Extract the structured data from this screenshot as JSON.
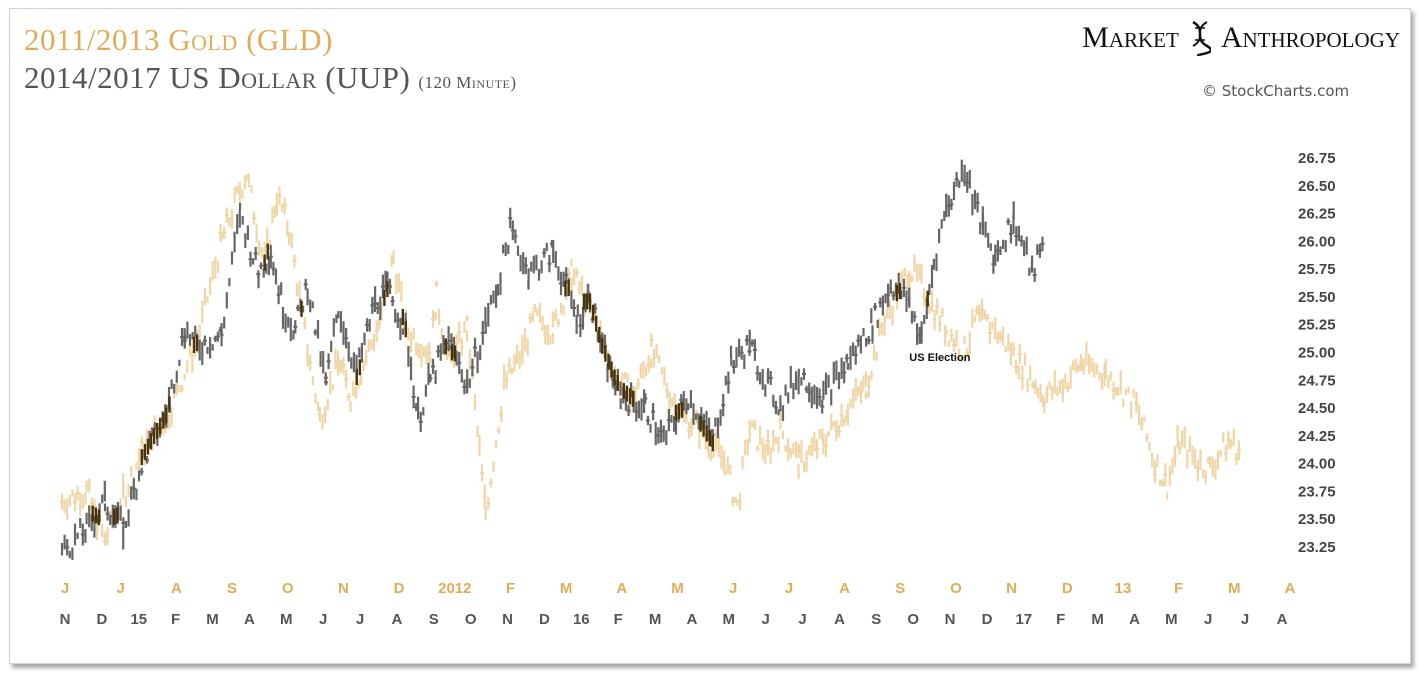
{
  "title_gold": "2011/2013 Gold (GLD)",
  "title_dollar": "2014/2017 US Dollar (UUP)",
  "title_dollar_note": "(120 Minute)",
  "brand_left": "Market",
  "brand_right": "Anthropology",
  "copyright": "© StockCharts.com",
  "colors": {
    "gold": "#f0d6a6",
    "dollar": "#666666",
    "overlap": "#4a3208",
    "gold_label": "#e0ac58",
    "axis_label": "#555555"
  },
  "chart_data": {
    "type": "line",
    "title": "2011/2013 Gold (GLD) vs 2014/2017 US Dollar (UUP) (120 Minute)",
    "ylim": [
      23.0,
      26.9
    ],
    "y_ticks": [
      "26.75",
      "26.50",
      "26.25",
      "26.00",
      "25.75",
      "25.50",
      "25.25",
      "25.00",
      "24.75",
      "24.50",
      "24.25",
      "24.00",
      "23.75",
      "23.50",
      "23.25"
    ],
    "x_labels_gold": [
      "J",
      "J",
      "A",
      "S",
      "O",
      "N",
      "D",
      "2012",
      "F",
      "M",
      "A",
      "M",
      "J",
      "J",
      "A",
      "S",
      "O",
      "N",
      "D",
      "13",
      "F",
      "M",
      "A"
    ],
    "x_labels_dollar": [
      "N",
      "D",
      "15",
      "F",
      "M",
      "A",
      "M",
      "J",
      "J",
      "A",
      "S",
      "O",
      "N",
      "D",
      "16",
      "F",
      "M",
      "A",
      "M",
      "J",
      "J",
      "A",
      "S",
      "O",
      "N",
      "D",
      "17",
      "F",
      "M",
      "A",
      "M",
      "J",
      "J",
      "A"
    ],
    "annotations": [
      {
        "text": "US Election",
        "x_index": 0.69,
        "y": 24.95
      }
    ],
    "series": [
      {
        "name": "2011/2013 Gold (GLD)",
        "x": [
          0,
          0.02,
          0.035,
          0.05,
          0.065,
          0.085,
          0.11,
          0.13,
          0.15,
          0.165,
          0.175,
          0.185,
          0.2,
          0.21,
          0.225,
          0.235,
          0.26,
          0.27,
          0.28,
          0.3,
          0.305,
          0.315,
          0.33,
          0.34,
          0.345,
          0.36,
          0.375,
          0.385,
          0.4,
          0.415,
          0.43,
          0.45,
          0.465,
          0.48,
          0.5,
          0.52,
          0.54,
          0.55,
          0.56,
          0.575,
          0.585,
          0.6,
          0.62,
          0.64,
          0.655,
          0.67,
          0.68,
          0.69,
          0.7,
          0.72,
          0.735,
          0.745,
          0.76,
          0.78,
          0.8,
          0.815,
          0.83,
          0.85,
          0.86,
          0.875,
          0.89,
          0.9,
          0.91,
          0.925,
          0.935,
          0.95,
          0.96
        ],
        "values": [
          23.65,
          23.75,
          23.3,
          23.7,
          24.1,
          24.4,
          25.1,
          26.0,
          26.6,
          25.8,
          26.4,
          26.1,
          25.0,
          24.4,
          24.9,
          24.6,
          25.3,
          25.85,
          25.2,
          25.0,
          25.5,
          24.9,
          25.2,
          24.1,
          23.55,
          24.7,
          25.0,
          25.3,
          25.2,
          25.7,
          25.4,
          24.8,
          24.6,
          25.0,
          24.5,
          24.3,
          24.0,
          23.6,
          24.3,
          24.1,
          24.3,
          24.0,
          24.2,
          24.5,
          24.7,
          25.3,
          25.5,
          25.75,
          25.6,
          25.2,
          25.0,
          25.3,
          25.2,
          24.9,
          24.6,
          24.7,
          24.9,
          24.8,
          24.7,
          24.5,
          24.0,
          23.8,
          24.2,
          24.0,
          23.95,
          24.2,
          24.1
        ]
      },
      {
        "name": "2014/2017 US Dollar (UUP)",
        "x": [
          0,
          0.02,
          0.035,
          0.05,
          0.065,
          0.085,
          0.1,
          0.11,
          0.13,
          0.145,
          0.16,
          0.17,
          0.18,
          0.19,
          0.2,
          0.215,
          0.225,
          0.24,
          0.255,
          0.265,
          0.28,
          0.29,
          0.3,
          0.315,
          0.33,
          0.345,
          0.355,
          0.365,
          0.38,
          0.4,
          0.42,
          0.43,
          0.44,
          0.455,
          0.475,
          0.49,
          0.5,
          0.51,
          0.53,
          0.545,
          0.56,
          0.575,
          0.585,
          0.6,
          0.62,
          0.64,
          0.66,
          0.675,
          0.69,
          0.7,
          0.71,
          0.72,
          0.735,
          0.75,
          0.76,
          0.775,
          0.79,
          0.8
        ],
        "values": [
          23.2,
          23.4,
          23.65,
          23.4,
          24.0,
          24.45,
          25.2,
          25.05,
          25.15,
          26.25,
          25.7,
          25.9,
          25.4,
          25.2,
          25.6,
          24.7,
          25.4,
          24.8,
          25.45,
          25.55,
          25.2,
          24.4,
          24.75,
          25.1,
          24.7,
          25.25,
          25.6,
          26.1,
          25.7,
          25.9,
          25.3,
          25.5,
          25.0,
          24.6,
          24.5,
          24.2,
          24.4,
          24.6,
          24.2,
          24.9,
          25.05,
          24.7,
          24.5,
          24.8,
          24.6,
          24.9,
          25.25,
          25.6,
          25.45,
          25.1,
          25.8,
          26.3,
          26.65,
          26.1,
          25.85,
          26.2,
          25.7,
          26.0
        ]
      }
    ]
  }
}
